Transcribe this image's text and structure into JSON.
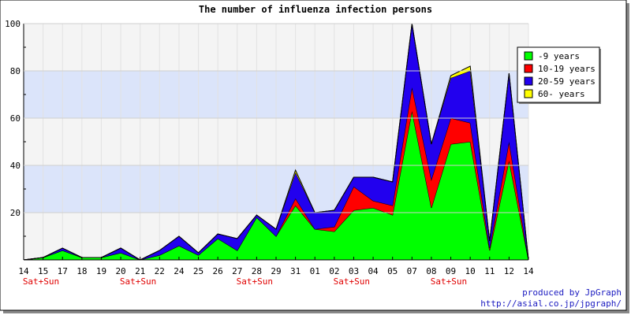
{
  "chart_data": {
    "type": "area",
    "stacked": true,
    "title": "The number of influenza infection persons",
    "xlabel": "",
    "ylabel": "",
    "ylim": [
      0,
      100
    ],
    "yticks": [
      20,
      40,
      60,
      80,
      100
    ],
    "grid": true,
    "legend_position": "top-right",
    "categories": [
      "14",
      "15",
      "17",
      "18",
      "19",
      "20",
      "21",
      "22",
      "24",
      "25",
      "26",
      "27",
      "28",
      "29",
      "31",
      "01",
      "02",
      "03",
      "04",
      "05",
      "07",
      "08",
      "09",
      "10",
      "11",
      "12",
      "14"
    ],
    "weekend_label": "Sat+Sun",
    "weekend_indices": [
      0,
      5,
      11,
      16,
      21
    ],
    "series": [
      {
        "name": "-9 years",
        "color": "#00ff00",
        "values": [
          0,
          1,
          4,
          1,
          1,
          3,
          0,
          2,
          6,
          2,
          9,
          4,
          18,
          10,
          23,
          13,
          12,
          21,
          22,
          19,
          63,
          22,
          49,
          50,
          4,
          42,
          0
        ]
      },
      {
        "name": "10-19 years",
        "color": "#ff0000",
        "values": [
          0,
          0,
          0,
          0,
          0,
          0,
          0,
          0,
          0,
          0,
          0,
          0,
          0,
          0,
          3,
          0,
          2,
          10,
          3,
          4,
          10,
          12,
          11,
          8,
          1,
          8,
          0
        ]
      },
      {
        "name": "20-59 years",
        "color": "#2200ee",
        "values": [
          0,
          0,
          1,
          0,
          0,
          2,
          0,
          2,
          4,
          1,
          2,
          5,
          1,
          3,
          11,
          7,
          7,
          4,
          10,
          10,
          27,
          15,
          17,
          22,
          3,
          29,
          0
        ]
      },
      {
        "name": "60- years",
        "color": "#ffff00",
        "values": [
          0,
          0,
          0,
          0,
          0,
          0,
          0,
          0,
          0,
          0,
          0,
          0,
          0,
          0,
          1,
          0,
          0,
          0,
          0,
          0,
          0,
          0,
          1,
          2,
          0,
          0,
          0
        ]
      }
    ],
    "bands": [
      [
        20,
        40
      ],
      [
        60,
        80
      ]
    ]
  },
  "credits": {
    "line1": "produced by JpGraph",
    "line2": "http://asial.co.jp/jpgraph/"
  },
  "colors": {
    "band": "#dbe4fa",
    "plot_bg": "#f4f4f4",
    "weekend_text": "#e00000",
    "credit_text": "#1a1ac0"
  }
}
